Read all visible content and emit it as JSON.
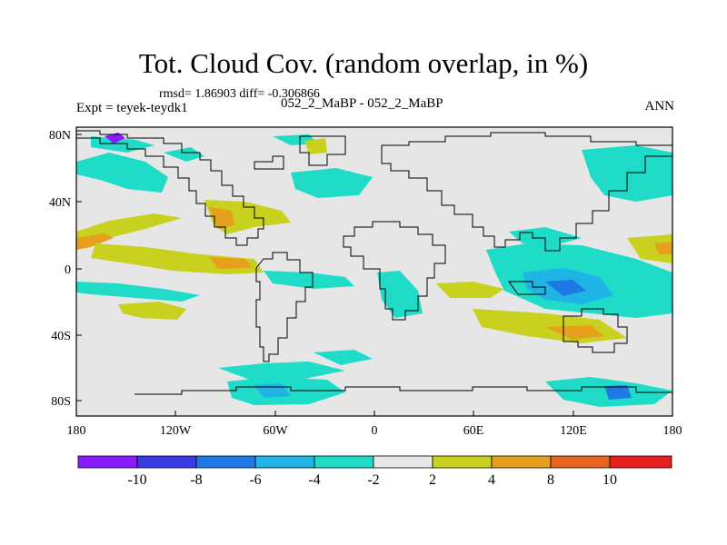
{
  "header": {
    "title": "Tot. Cloud Cov. (random overlap, in %)",
    "stats": "rmsd= 1.86903 diff= -0.306866",
    "experiment": "Expt = teyek-teydk1",
    "runs": "052_2_MaBP - 052_2_MaBP",
    "season": "ANN"
  },
  "map": {
    "lon_ticks": [
      "180",
      "120W",
      "60W",
      "0",
      "60E",
      "120E",
      "180"
    ],
    "lat_ticks": [
      "80N",
      "40N",
      "0",
      "40S",
      "80S"
    ],
    "lon_range": [
      -180,
      180
    ],
    "lat_range": [
      -90,
      90
    ],
    "background_color": "#e6e6e6",
    "coast_color": "#000000"
  },
  "colorbar": {
    "labels": [
      "-10",
      "-8",
      "-6",
      "-4",
      "-2",
      "2",
      "4",
      "8",
      "10"
    ],
    "colors": [
      "#8a1aff",
      "#3a3ae6",
      "#1e78e6",
      "#1eb4e6",
      "#1edcc8",
      "#e6e6e6",
      "#c8d21e",
      "#e6a01e",
      "#e6641e",
      "#e61e1e"
    ]
  }
}
